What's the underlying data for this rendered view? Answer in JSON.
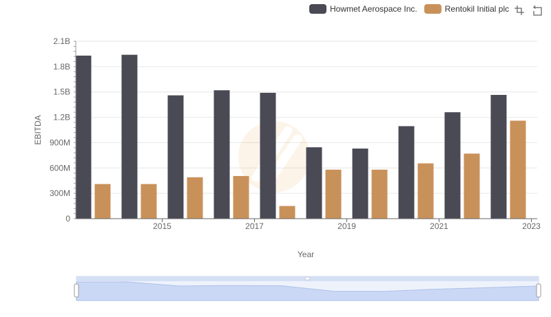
{
  "chart_data": {
    "type": "bar",
    "xlabel": "Year",
    "ylabel": "EBITDA",
    "ylim": [
      0,
      2100000000
    ],
    "y_ticks": [
      "0",
      "300M",
      "600M",
      "900M",
      "1.2B",
      "1.5B",
      "1.8B",
      "2.1B"
    ],
    "x_tick_labels": [
      "2015",
      "2017",
      "2019",
      "2021",
      "2023"
    ],
    "categories": [
      "2014",
      "2015",
      "2016",
      "2017",
      "2018",
      "2019",
      "2020",
      "2021",
      "2022",
      "2023"
    ],
    "series": [
      {
        "name": "Howmet Aerospace Inc.",
        "color": "#4a4a55",
        "values": [
          1930000000,
          1940000000,
          1460000000,
          1520000000,
          1490000000,
          845000000,
          830000000,
          1095000000,
          1260000000,
          1465000000
        ]
      },
      {
        "name": "Rentokil Initial plc",
        "color": "#c9915a",
        "values": [
          410000000,
          410000000,
          490000000,
          505000000,
          150000000,
          580000000,
          580000000,
          655000000,
          770000000,
          1160000000
        ]
      }
    ],
    "legend_position": "top-right",
    "grid": true,
    "data_zoom": true
  },
  "legend": {
    "items": [
      {
        "label": "Howmet Aerospace Inc.",
        "color": "#4a4a55"
      },
      {
        "label": "Rentokil Initial plc",
        "color": "#c9915a"
      }
    ]
  },
  "toolbox": [
    "zoom-icon",
    "restore-icon"
  ]
}
